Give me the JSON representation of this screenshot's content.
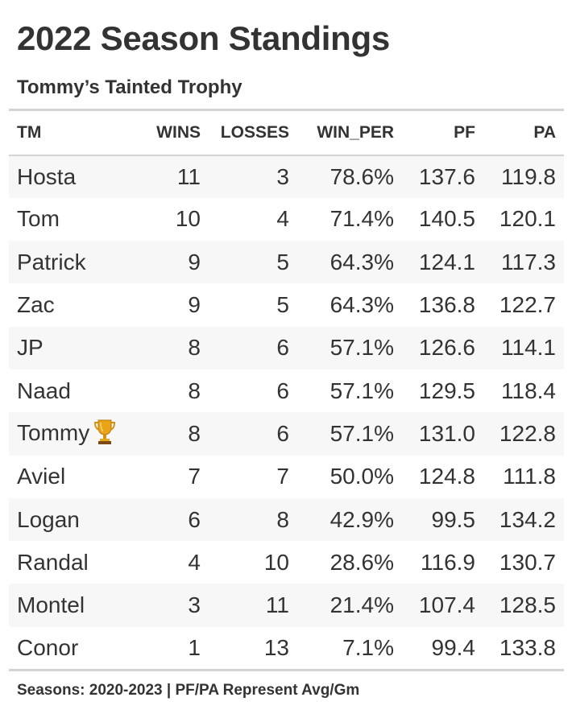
{
  "title": "2022 Season Standings",
  "subtitle": "Tommy’s Tainted Trophy",
  "columns": [
    "TM",
    "WINS",
    "LOSSES",
    "WIN_PER",
    "PF",
    "PA"
  ],
  "rows": [
    {
      "tm": "Hosta",
      "wins": "11",
      "losses": "3",
      "win_per": "78.6%",
      "pf": "137.6",
      "pa": "119.8"
    },
    {
      "tm": "Tom",
      "wins": "10",
      "losses": "4",
      "win_per": "71.4%",
      "pf": "140.5",
      "pa": "120.1"
    },
    {
      "tm": "Patrick",
      "wins": "9",
      "losses": "5",
      "win_per": "64.3%",
      "pf": "124.1",
      "pa": "117.3"
    },
    {
      "tm": "Zac",
      "wins": "9",
      "losses": "5",
      "win_per": "64.3%",
      "pf": "136.8",
      "pa": "122.7"
    },
    {
      "tm": "JP",
      "wins": "8",
      "losses": "6",
      "win_per": "57.1%",
      "pf": "126.6",
      "pa": "114.1"
    },
    {
      "tm": "Naad",
      "wins": "8",
      "losses": "6",
      "win_per": "57.1%",
      "pf": "129.5",
      "pa": "118.4"
    },
    {
      "tm": "Tommy",
      "wins": "8",
      "losses": "6",
      "win_per": "57.1%",
      "pf": "131.0",
      "pa": "122.8",
      "icon": "trophy-icon"
    },
    {
      "tm": "Aviel",
      "wins": "7",
      "losses": "7",
      "win_per": "50.0%",
      "pf": "124.8",
      "pa": "111.8"
    },
    {
      "tm": "Logan",
      "wins": "6",
      "losses": "8",
      "win_per": "42.9%",
      "pf": "99.5",
      "pa": "134.2"
    },
    {
      "tm": "Randal",
      "wins": "4",
      "losses": "10",
      "win_per": "28.6%",
      "pf": "116.9",
      "pa": "130.7"
    },
    {
      "tm": "Montel",
      "wins": "3",
      "losses": "11",
      "win_per": "21.4%",
      "pf": "107.4",
      "pa": "128.5"
    },
    {
      "tm": "Conor",
      "wins": "1",
      "losses": "13",
      "win_per": "7.1%",
      "pf": "99.4",
      "pa": "133.8"
    }
  ],
  "footer": "Seasons: 2020-2023 | PF/PA Represent Avg/Gm",
  "colors": {
    "text": "#333333",
    "stripe": "#f7f7f7",
    "rule": "#d3d3d3",
    "trophy": "#e8a317"
  }
}
